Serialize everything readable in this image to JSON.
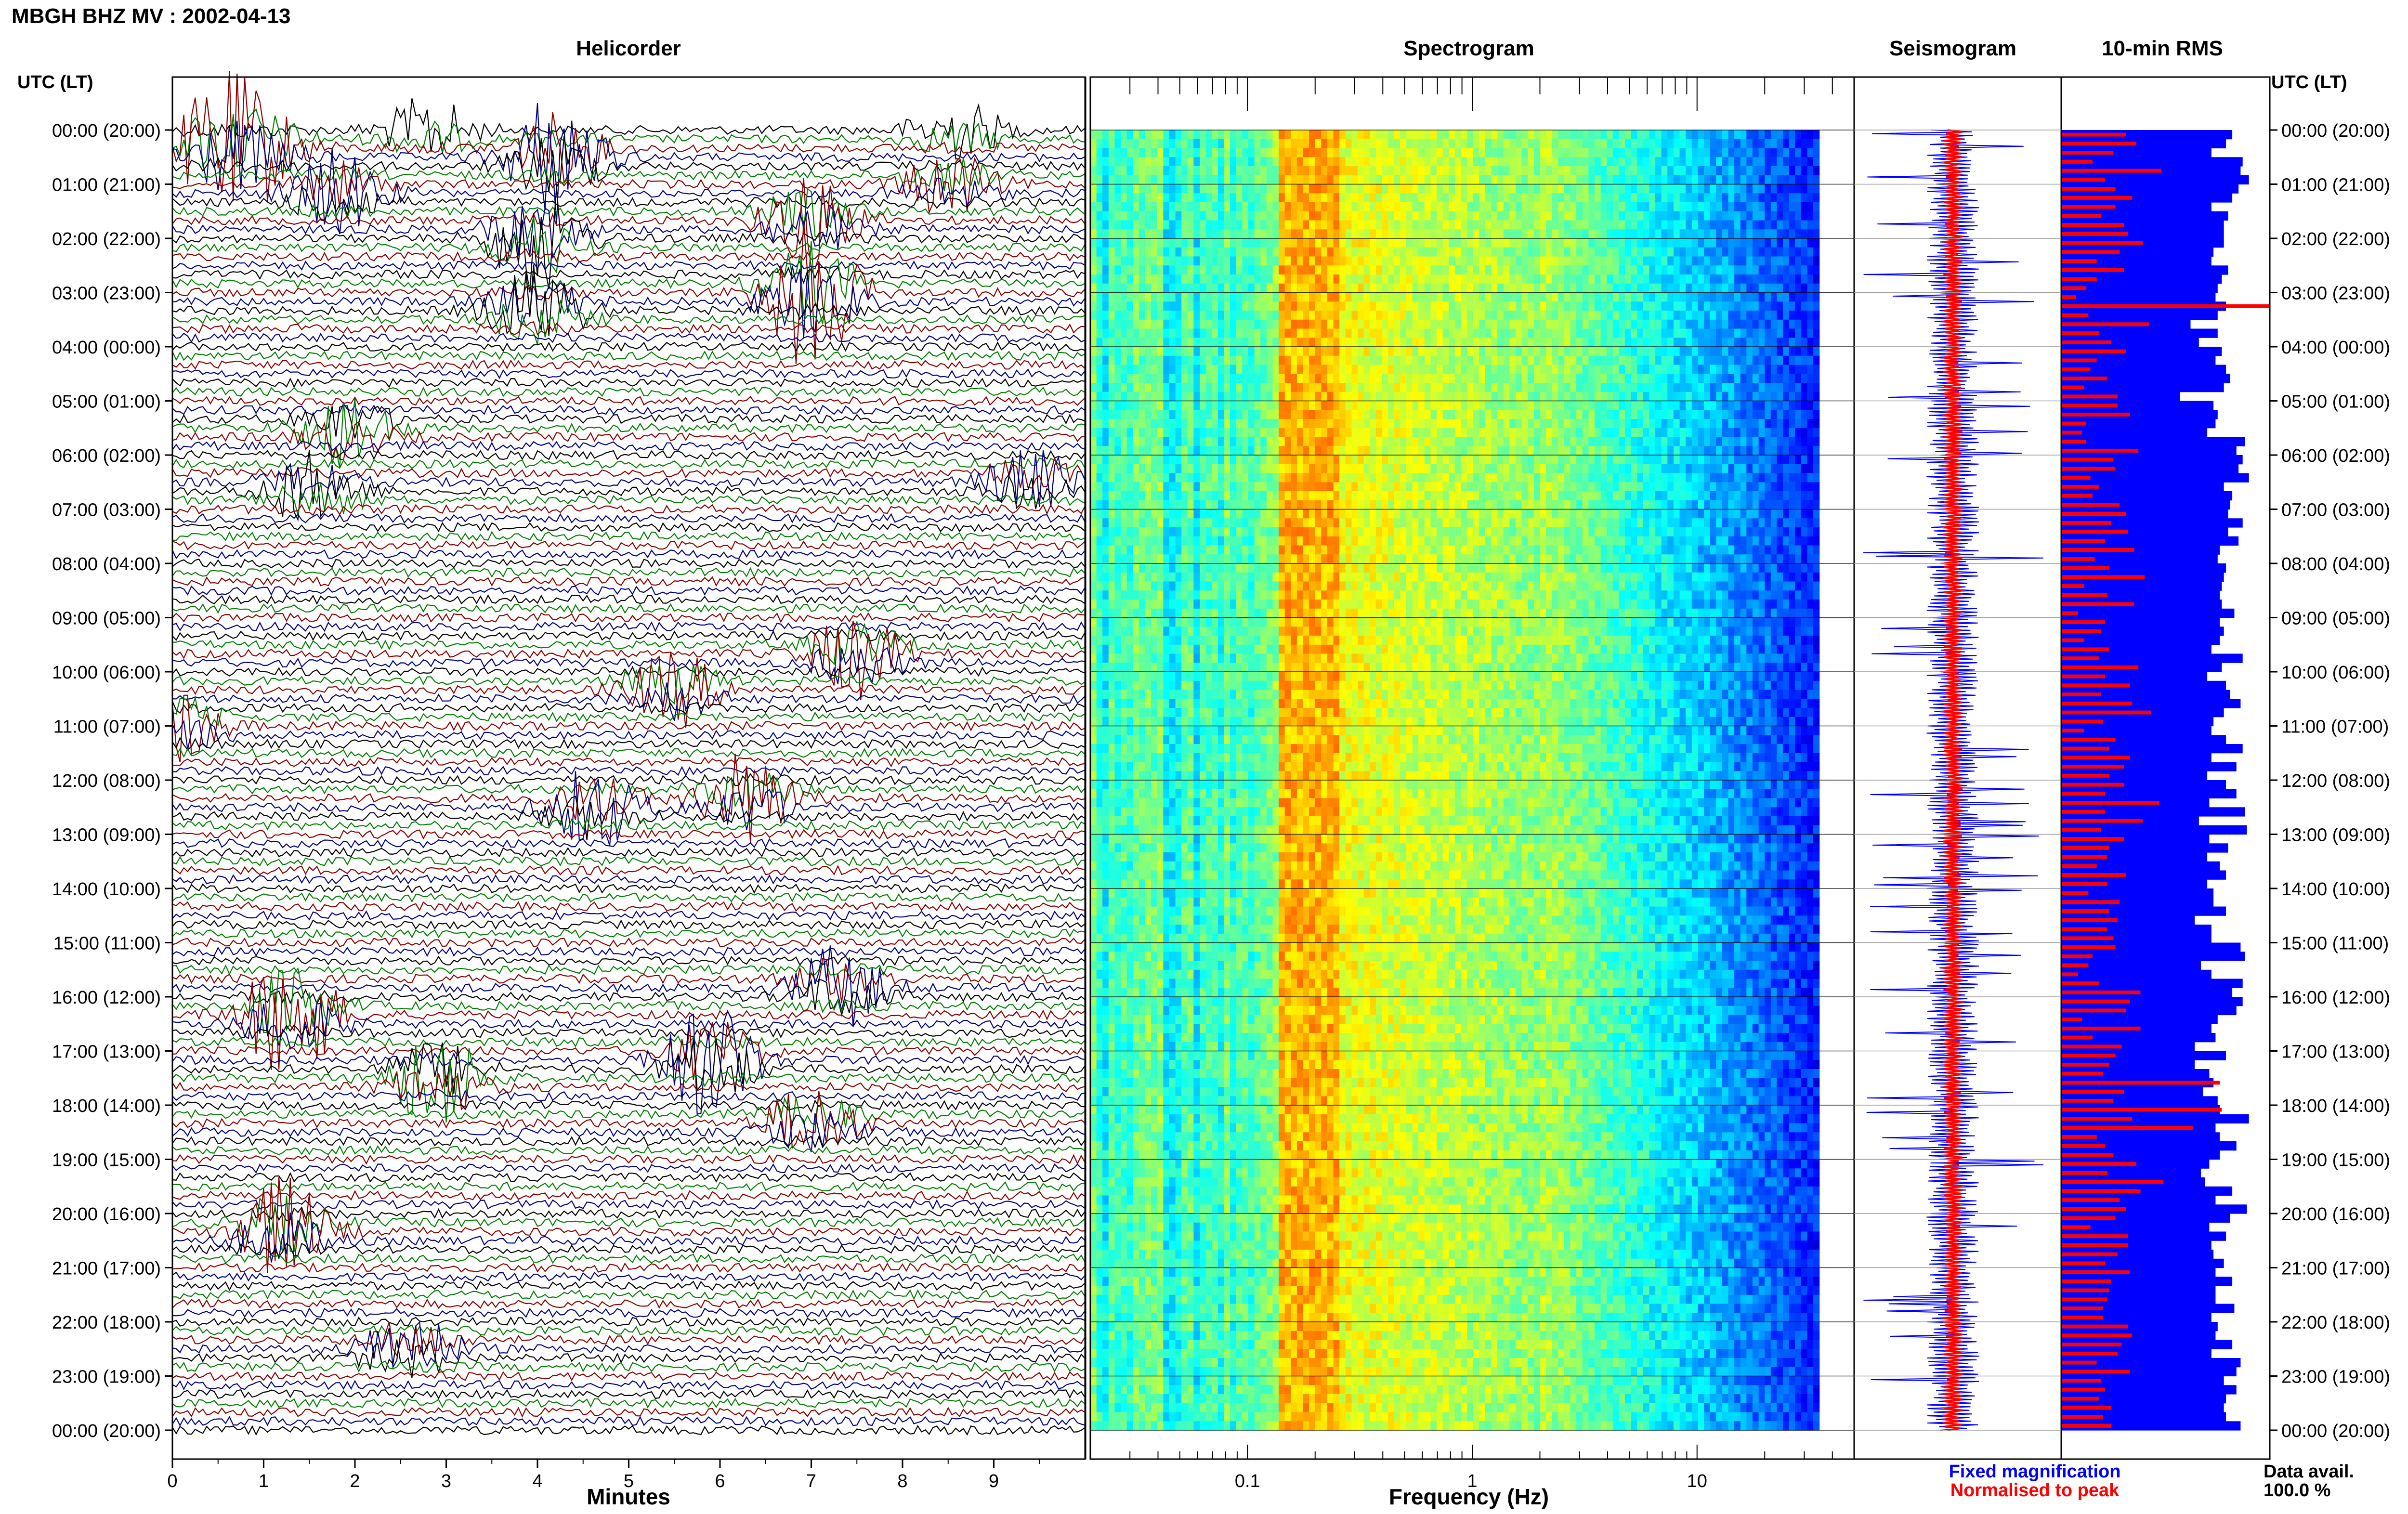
{
  "header": {
    "station_title": "MBGH BHZ MV : 2002-04-13",
    "time_axis_label": "UTC (LT)",
    "data_avail_label": "Data avail.",
    "data_avail_value": "100.0 %"
  },
  "panels": {
    "helicorder": "Helicorder",
    "spectrogram": "Spectrogram",
    "seismogram": "Seismogram",
    "rms": "10-min RMS"
  },
  "legend": {
    "fixed": "Fixed magnification",
    "normalised": "Normalised to peak",
    "fixed_color": "#0000ff",
    "normalised_color": "#ff0000"
  },
  "colors": {
    "trace_cycle": [
      "#000000",
      "#008000",
      "#8b0000",
      "#000080"
    ],
    "rms_fixed": "#0000ff",
    "rms_normalised": "#ff0000"
  },
  "chart_data": [
    {
      "type": "line",
      "title": "Helicorder",
      "xlabel": "Minutes",
      "x_ticks": [
        "0",
        "1",
        "2",
        "3",
        "4",
        "5",
        "6",
        "7",
        "8",
        "9"
      ],
      "xlim": [
        0,
        10
      ],
      "y_tick_labels": [
        "00:00 (20:00)",
        "01:00 (21:00)",
        "02:00 (22:00)",
        "03:00 (23:00)",
        "04:00 (00:00)",
        "05:00 (01:00)",
        "06:00 (02:00)",
        "07:00 (03:00)",
        "08:00 (04:00)",
        "09:00 (05:00)",
        "10:00 (06:00)",
        "11:00 (07:00)",
        "12:00 (08:00)",
        "13:00 (09:00)",
        "14:00 (10:00)",
        "15:00 (11:00)",
        "16:00 (12:00)",
        "17:00 (13:00)",
        "18:00 (14:00)",
        "19:00 (15:00)",
        "20:00 (16:00)",
        "21:00 (17:00)",
        "22:00 (18:00)",
        "23:00 (19:00)",
        "00:00 (20:00)"
      ],
      "lines_per_hour": 6,
      "events": [
        {
          "hour": 0.0,
          "minute": 2.8,
          "amp": 1.2
        },
        {
          "hour": 0.0,
          "minute": 8.6,
          "amp": 1.1
        },
        {
          "hour": 0.33,
          "minute": 0.5,
          "amp": 2.2
        },
        {
          "hour": 0.33,
          "minute": 1.0,
          "amp": 1.4
        },
        {
          "hour": 0.5,
          "minute": 4.2,
          "amp": 2.5
        },
        {
          "hour": 1.17,
          "minute": 1.8,
          "amp": 1.6
        },
        {
          "hour": 1.0,
          "minute": 8.5,
          "amp": 1.2
        },
        {
          "hour": 1.67,
          "minute": 7.0,
          "amp": 1.8
        },
        {
          "hour": 2.0,
          "minute": 4.0,
          "amp": 2.2
        },
        {
          "hour": 3.0,
          "minute": 7.0,
          "amp": 3.0
        },
        {
          "hour": 3.33,
          "minute": 4.0,
          "amp": 1.8
        },
        {
          "hour": 5.5,
          "minute": 1.9,
          "amp": 1.5
        },
        {
          "hour": 6.67,
          "minute": 1.5,
          "amp": 1.4
        },
        {
          "hour": 6.5,
          "minute": 9.4,
          "amp": 1.2
        },
        {
          "hour": 9.67,
          "minute": 7.5,
          "amp": 1.6
        },
        {
          "hour": 10.33,
          "minute": 5.5,
          "amp": 1.4
        },
        {
          "hour": 11.0,
          "minute": 0.0,
          "amp": 1.5
        },
        {
          "hour": 12.33,
          "minute": 6.3,
          "amp": 1.8
        },
        {
          "hour": 12.5,
          "minute": 4.6,
          "amp": 1.6
        },
        {
          "hour": 16.33,
          "minute": 1.3,
          "amp": 2.6
        },
        {
          "hour": 15.83,
          "minute": 7.3,
          "amp": 1.6
        },
        {
          "hour": 17.5,
          "minute": 2.9,
          "amp": 2.0
        },
        {
          "hour": 17.17,
          "minute": 5.9,
          "amp": 2.4
        },
        {
          "hour": 18.33,
          "minute": 7.0,
          "amp": 1.4
        },
        {
          "hour": 20.33,
          "minute": 1.2,
          "amp": 2.0
        },
        {
          "hour": 22.5,
          "minute": 2.6,
          "amp": 1.4
        }
      ]
    },
    {
      "type": "heatmap",
      "title": "Spectrogram",
      "xlabel": "Frequency (Hz)",
      "x_scale": "log",
      "xlim": [
        0.02,
        50
      ],
      "x_ticks": [
        {
          "value": 0.1,
          "label": "0.1"
        },
        {
          "value": 1,
          "label": "1"
        },
        {
          "value": 10,
          "label": "10"
        }
      ],
      "dominant_band_hz": [
        0.14,
        2
      ],
      "upper_cutoff_hz": 35,
      "colormap": "jet"
    },
    {
      "type": "line",
      "title": "Seismogram",
      "series": [
        {
          "name": "Fixed magnification",
          "color": "#0000ff"
        },
        {
          "name": "Normalised to peak",
          "color": "#ff0000"
        }
      ]
    },
    {
      "type": "bar",
      "title": "10-min RMS",
      "orientation": "horizontal",
      "hours": 24,
      "bins_per_hour": 6,
      "series": [
        {
          "name": "Fixed magnification",
          "values": [
            0.82,
            0.79,
            0.72,
            0.87,
            0.86,
            0.9,
            0.85,
            0.82,
            0.72,
            0.8,
            0.78,
            0.78,
            0.78,
            0.73,
            0.72,
            0.8,
            0.77,
            0.75,
            0.74,
            0.79,
            0.75,
            0.62,
            0.75,
            0.66,
            0.77,
            0.74,
            0.79,
            0.81,
            0.78,
            0.57,
            0.73,
            0.75,
            0.74,
            0.7,
            0.88,
            0.84,
            0.87,
            0.85,
            0.9,
            0.78,
            0.82,
            0.81,
            0.8,
            0.87,
            0.8,
            0.85,
            0.76,
            0.75,
            0.79,
            0.78,
            0.77,
            0.76,
            0.77,
            0.83,
            0.76,
            0.78,
            0.76,
            0.72,
            0.87,
            0.77,
            0.7,
            0.79,
            0.81,
            0.86,
            0.78,
            0.73,
            0.72,
            0.79,
            0.87,
            0.72,
            0.84,
            0.7,
            0.79,
            0.84,
            0.71,
            0.88,
            0.66,
            0.89,
            0.71,
            0.8,
            0.7,
            0.76,
            0.79,
            0.7,
            0.73,
            0.73,
            0.79,
            0.64,
            0.72,
            0.72,
            0.86,
            0.88,
            0.67,
            0.72,
            0.87,
            0.82,
            0.87,
            0.84,
            0.75,
            0.72,
            0.74,
            0.64,
            0.79,
            0.64,
            0.71,
            0.73,
            0.68,
            0.75,
            0.76,
            0.9,
            0.74,
            0.76,
            0.84,
            0.76,
            0.71,
            0.67,
            0.69,
            0.82,
            0.74,
            0.89,
            0.81,
            0.71,
            0.79,
            0.72,
            0.73,
            0.78,
            0.74,
            0.82,
            0.74,
            0.74,
            0.83,
            0.72,
            0.75,
            0.74,
            0.82,
            0.72,
            0.86,
            0.84,
            0.78,
            0.84,
            0.79,
            0.78,
            0.79,
            0.86
          ]
        },
        {
          "name": "Normalised to peak",
          "values": [
            0.31,
            0.36,
            0.25,
            0.15,
            0.48,
            0.21,
            0.26,
            0.34,
            0.26,
            0.19,
            0.3,
            0.32,
            0.39,
            0.28,
            0.17,
            0.3,
            0.17,
            0.12,
            0.07,
            1.0,
            0.13,
            0.42,
            0.18,
            0.24,
            0.31,
            0.17,
            0.14,
            0.22,
            0.11,
            0.27,
            0.27,
            0.33,
            0.12,
            0.1,
            0.12,
            0.37,
            0.25,
            0.26,
            0.14,
            0.18,
            0.15,
            0.28,
            0.31,
            0.24,
            0.32,
            0.21,
            0.35,
            0.16,
            0.23,
            0.4,
            0.11,
            0.22,
            0.35,
            0.08,
            0.21,
            0.19,
            0.11,
            0.23,
            0.18,
            0.37,
            0.21,
            0.33,
            0.19,
            0.34,
            0.43,
            0.2,
            0.11,
            0.26,
            0.23,
            0.33,
            0.3,
            0.23,
            0.3,
            0.21,
            0.47,
            0.21,
            0.39,
            0.19,
            0.3,
            0.23,
            0.22,
            0.17,
            0.31,
            0.22,
            0.13,
            0.28,
            0.23,
            0.27,
            0.22,
            0.25,
            0.26,
            0.15,
            0.13,
            0.08,
            0.18,
            0.38,
            0.33,
            0.31,
            0.1,
            0.38,
            0.15,
            0.29,
            0.26,
            0.23,
            0.2,
            0.76,
            0.3,
            0.25,
            0.77,
            0.34,
            0.63,
            0.17,
            0.21,
            0.25,
            0.36,
            0.22,
            0.49,
            0.38,
            0.28,
            0.31,
            0.26,
            0.14,
            0.32,
            0.32,
            0.27,
            0.21,
            0.33,
            0.24,
            0.23,
            0.22,
            0.2,
            0.2,
            0.32,
            0.34,
            0.29,
            0.27,
            0.17,
            0.33,
            0.19,
            0.21,
            0.18,
            0.24,
            0.2,
            0.24
          ]
        }
      ]
    }
  ]
}
